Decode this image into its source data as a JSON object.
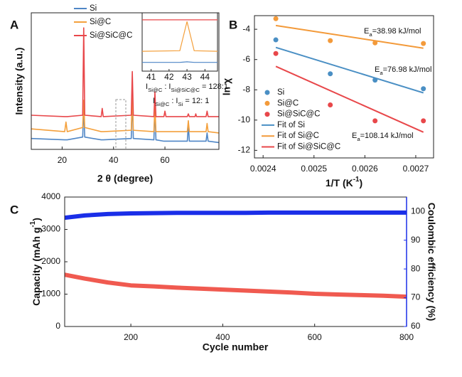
{
  "chart_data": [
    {
      "type": "line",
      "panel_label": "A",
      "x_label": "2 θ (degree)",
      "y_label": "Intensity (a.u.)",
      "xlim": [
        8,
        81
      ],
      "xticks": [
        20,
        40,
        60
      ],
      "ylim": [
        0,
        100
      ],
      "x": [
        8,
        21,
        21.5,
        22,
        28,
        28.4,
        28.8,
        35.2,
        35.6,
        36,
        46.9,
        47.3,
        47.7,
        55.7,
        56.1,
        56.5,
        59.6,
        60,
        60.4,
        68.7,
        69.1,
        69.5,
        71.7,
        72,
        72.3,
        76,
        76.4,
        76.8,
        81
      ],
      "series": [
        {
          "name": "Si",
          "color": "#4f86c6",
          "values": [
            8,
            7,
            7,
            7,
            9,
            31,
            9,
            7,
            7,
            7,
            8,
            39,
            8,
            7,
            31,
            7,
            6,
            6,
            6,
            6,
            18,
            6,
            6,
            6,
            6,
            6,
            12,
            6,
            5
          ]
        },
        {
          "name": "Si@C",
          "color": "#f4a03c",
          "values": [
            15,
            13,
            20,
            13,
            16,
            36,
            16,
            13,
            13,
            13,
            14,
            42,
            14,
            13,
            32,
            13,
            13,
            13,
            13,
            13,
            21,
            13,
            13,
            13,
            13,
            13,
            19,
            13,
            12
          ]
        },
        {
          "name": "Si@SiC@C",
          "color": "#e8474a",
          "values": [
            25,
            24,
            24,
            24,
            25,
            89,
            25,
            24,
            30,
            24,
            25,
            57,
            25,
            24,
            42,
            24,
            24,
            28,
            24,
            24,
            26,
            24,
            24,
            26,
            24,
            24,
            28,
            24,
            24
          ]
        }
      ],
      "inset": {
        "x": [
          40.5,
          42.6,
          43,
          43.4,
          44.7
        ],
        "xlim": [
          40.5,
          44.7
        ],
        "xticks": [
          41,
          42,
          43,
          44
        ],
        "ylim": [
          0,
          100
        ],
        "series": [
          {
            "values": [
              15,
              15,
              16,
              15,
              15
            ]
          },
          {
            "values": [
              34,
              35,
              85,
              35,
              34
            ]
          },
          {
            "values": [
              88,
              88,
              88,
              88,
              88
            ]
          }
        ]
      },
      "annotations": [
        [
          "I",
          "Si@C",
          " : I",
          "Si@SiC@C",
          " = 128:1"
        ],
        [
          "I",
          "Si@C",
          " : I",
          "Si",
          " = 12:  1"
        ]
      ]
    },
    {
      "type": "scatter",
      "panel_label": "B",
      "x_label": [
        "1/T (K",
        "-1",
        ")"
      ],
      "y_label": "ln χ",
      "xlim": [
        0.002383,
        0.002735
      ],
      "xticks": [
        0.0024,
        0.0025,
        0.0026,
        0.0027
      ],
      "ylim": [
        -12.5,
        -3.1
      ],
      "yticks": [
        -4,
        -6,
        -8,
        -10,
        -12
      ],
      "x": [
        0.002425,
        0.002532,
        0.00262,
        0.002715
      ],
      "series": [
        {
          "name": "Si",
          "color": "#4a8fc4",
          "marker": "circle",
          "values": [
            -4.7,
            -6.94,
            -7.36,
            -7.93
          ]
        },
        {
          "name": "Si@C",
          "color": "#f39a3a",
          "marker": "circle",
          "values": [
            -3.3,
            -4.75,
            -4.9,
            -4.94
          ]
        },
        {
          "name": "Si@SiC@C",
          "color": "#e8474a",
          "marker": "circle",
          "values": [
            -5.6,
            -9.0,
            -10.05,
            -10.05
          ]
        },
        {
          "name": "Fit of Si",
          "color": "#4a8fc4",
          "marker": "line",
          "x": [
            0.002425,
            0.002715
          ],
          "values": [
            -5.2,
            -8.2
          ]
        },
        {
          "name": "Fit of Si@C",
          "color": "#f39a3a",
          "marker": "line",
          "x": [
            0.002425,
            0.002715
          ],
          "values": [
            -3.75,
            -5.25
          ]
        },
        {
          "name": "Fit of Si@SiC@C",
          "color": "#e8474a",
          "marker": "line",
          "x": [
            0.002425,
            0.002715
          ],
          "values": [
            -6.45,
            -10.8
          ]
        }
      ],
      "annotations": [
        {
          "parts": [
            "E",
            "a",
            "=38.98 kJ/mol"
          ],
          "color": "#f39a3a"
        },
        {
          "parts": [
            "E",
            "a",
            "=76.98 kJ/mol"
          ],
          "color": "#4a8fc4"
        },
        {
          "parts": [
            "E",
            "a",
            "=108.14 kJ/mol"
          ],
          "color": "#e8474a"
        }
      ]
    },
    {
      "type": "line",
      "panel_label": "C",
      "x_label": "Cycle number",
      "y_label": [
        "Capacity (mAh g",
        "-1",
        ")"
      ],
      "y2_label": "Coulombic efficiency (%)",
      "xlim": [
        56,
        800
      ],
      "xticks": [
        200,
        400,
        600,
        800
      ],
      "ylim": [
        0,
        4000
      ],
      "yticks": [
        0,
        1000,
        2000,
        3000,
        4000
      ],
      "y2lim": [
        60,
        105
      ],
      "y2ticks": [
        60,
        70,
        80,
        90,
        100
      ],
      "x": [
        56,
        100,
        150,
        200,
        250,
        300,
        350,
        400,
        450,
        500,
        550,
        600,
        650,
        700,
        750,
        800
      ],
      "series": [
        {
          "color": "#f05a50",
          "values": [
            1600,
            1480,
            1360,
            1270,
            1240,
            1200,
            1170,
            1140,
            1110,
            1080,
            1050,
            1010,
            990,
            970,
            950,
            920
          ]
        },
        {
          "color": "#1a2ee8",
          "axis": "y2",
          "values": [
            97.8,
            98.6,
            99.1,
            99.3,
            99.4,
            99.5,
            99.5,
            99.5,
            99.5,
            99.6,
            99.6,
            99.6,
            99.6,
            99.6,
            99.6,
            99.6
          ]
        }
      ]
    }
  ]
}
